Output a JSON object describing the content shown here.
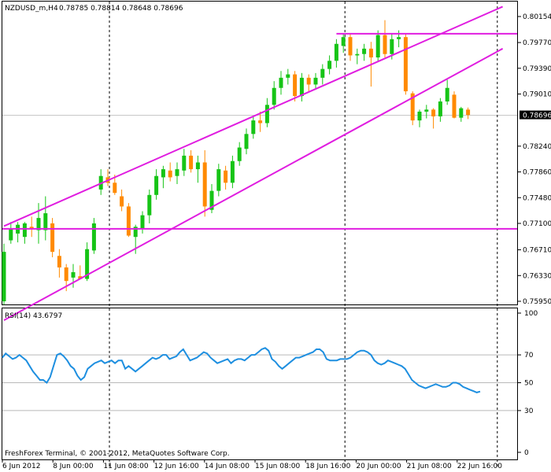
{
  "header": {
    "symbol": "NZDUSD_m,H4",
    "ohlc": "0.78785 0.78814 0.78648 0.78696"
  },
  "footer": {
    "copyright": "FreshForex Terminal, © 2001-2012, MetaQuotes Software Corp."
  },
  "colors": {
    "bull": "#16c416",
    "bear": "#ff8a00",
    "channel": "#e01de0",
    "rsi": "#1e8fe0",
    "grid": "#b9b9b9",
    "price_label_bg": "#000000"
  },
  "chart_data": [
    {
      "type": "candlestick",
      "title": "NZDUSD_m,H4",
      "ylim": [
        0.7595,
        0.80154
      ],
      "y_ticks": [
        "0.80154",
        "0.79770",
        "0.79390",
        "0.79010",
        "0.78240",
        "0.77860",
        "0.77480",
        "0.77100",
        "0.76710",
        "0.76330",
        "0.75950"
      ],
      "current_price": "0.78696",
      "x_ticks": [
        "6 Jun 2012",
        "8 Jun 00:00",
        "11 Jun 08:00",
        "12 Jun 16:00",
        "14 Jun 08:00",
        "15 Jun 08:00",
        "18 Jun 16:00",
        "20 Jun 00:00",
        "21 Jun 08:00",
        "22 Jun 16:00"
      ],
      "candles": [
        {
          "o": 0.7595,
          "h": 0.768,
          "l": 0.759,
          "c": 0.7668
        },
        {
          "o": 0.7685,
          "h": 0.7712,
          "l": 0.768,
          "c": 0.7702
        },
        {
          "o": 0.7695,
          "h": 0.7712,
          "l": 0.7682,
          "c": 0.7708
        },
        {
          "o": 0.769,
          "h": 0.7712,
          "l": 0.768,
          "c": 0.771
        },
        {
          "o": 0.7705,
          "h": 0.772,
          "l": 0.769,
          "c": 0.7702
        },
        {
          "o": 0.77,
          "h": 0.774,
          "l": 0.768,
          "c": 0.7718
        },
        {
          "o": 0.77,
          "h": 0.775,
          "l": 0.7685,
          "c": 0.7725
        },
        {
          "o": 0.771,
          "h": 0.7718,
          "l": 0.766,
          "c": 0.7668
        },
        {
          "o": 0.7662,
          "h": 0.7672,
          "l": 0.763,
          "c": 0.7645
        },
        {
          "o": 0.7645,
          "h": 0.765,
          "l": 0.761,
          "c": 0.7625
        },
        {
          "o": 0.763,
          "h": 0.765,
          "l": 0.7615,
          "c": 0.7638
        },
        {
          "o": 0.7632,
          "h": 0.7648,
          "l": 0.7628,
          "c": 0.7628
        },
        {
          "o": 0.7628,
          "h": 0.7682,
          "l": 0.7625,
          "c": 0.7672
        },
        {
          "o": 0.767,
          "h": 0.7718,
          "l": 0.7665,
          "c": 0.771
        },
        {
          "o": 0.776,
          "h": 0.779,
          "l": 0.7752,
          "c": 0.778
        },
        {
          "o": 0.7778,
          "h": 0.779,
          "l": 0.7765,
          "c": 0.777
        },
        {
          "o": 0.777,
          "h": 0.7782,
          "l": 0.7752,
          "c": 0.7755
        },
        {
          "o": 0.775,
          "h": 0.776,
          "l": 0.7728,
          "c": 0.7735
        },
        {
          "o": 0.7735,
          "h": 0.774,
          "l": 0.769,
          "c": 0.7692
        },
        {
          "o": 0.769,
          "h": 0.7708,
          "l": 0.7665,
          "c": 0.7705
        },
        {
          "o": 0.7702,
          "h": 0.7728,
          "l": 0.7695,
          "c": 0.7722
        },
        {
          "o": 0.7722,
          "h": 0.776,
          "l": 0.771,
          "c": 0.7752
        },
        {
          "o": 0.7752,
          "h": 0.779,
          "l": 0.7745,
          "c": 0.778
        },
        {
          "o": 0.7778,
          "h": 0.7795,
          "l": 0.7762,
          "c": 0.779
        },
        {
          "o": 0.7788,
          "h": 0.78,
          "l": 0.7772,
          "c": 0.7778
        },
        {
          "o": 0.778,
          "h": 0.78,
          "l": 0.7768,
          "c": 0.779
        },
        {
          "o": 0.7788,
          "h": 0.782,
          "l": 0.778,
          "c": 0.781
        },
        {
          "o": 0.781,
          "h": 0.7818,
          "l": 0.7785,
          "c": 0.779
        },
        {
          "o": 0.779,
          "h": 0.781,
          "l": 0.777,
          "c": 0.78
        },
        {
          "o": 0.78,
          "h": 0.7818,
          "l": 0.772,
          "c": 0.7735
        },
        {
          "o": 0.773,
          "h": 0.7768,
          "l": 0.7725,
          "c": 0.7758
        },
        {
          "o": 0.7758,
          "h": 0.7798,
          "l": 0.775,
          "c": 0.779
        },
        {
          "o": 0.7788,
          "h": 0.7795,
          "l": 0.776,
          "c": 0.777
        },
        {
          "o": 0.777,
          "h": 0.781,
          "l": 0.7762,
          "c": 0.7802
        },
        {
          "o": 0.7802,
          "h": 0.783,
          "l": 0.7795,
          "c": 0.7822
        },
        {
          "o": 0.782,
          "h": 0.785,
          "l": 0.7812,
          "c": 0.7842
        },
        {
          "o": 0.7842,
          "h": 0.7868,
          "l": 0.7835,
          "c": 0.7862
        },
        {
          "o": 0.7862,
          "h": 0.7875,
          "l": 0.7845,
          "c": 0.7858
        },
        {
          "o": 0.7858,
          "h": 0.7895,
          "l": 0.7852,
          "c": 0.7885
        },
        {
          "o": 0.7885,
          "h": 0.792,
          "l": 0.7878,
          "c": 0.791
        },
        {
          "o": 0.791,
          "h": 0.7935,
          "l": 0.79,
          "c": 0.7925
        },
        {
          "o": 0.7925,
          "h": 0.7938,
          "l": 0.7915,
          "c": 0.793
        },
        {
          "o": 0.793,
          "h": 0.7935,
          "l": 0.789,
          "c": 0.7898
        },
        {
          "o": 0.7898,
          "h": 0.7932,
          "l": 0.789,
          "c": 0.7925
        },
        {
          "o": 0.7925,
          "h": 0.793,
          "l": 0.7905,
          "c": 0.7915
        },
        {
          "o": 0.7915,
          "h": 0.7932,
          "l": 0.7908,
          "c": 0.7925
        },
        {
          "o": 0.7925,
          "h": 0.7945,
          "l": 0.7915,
          "c": 0.7938
        },
        {
          "o": 0.7938,
          "h": 0.7958,
          "l": 0.793,
          "c": 0.795
        },
        {
          "o": 0.795,
          "h": 0.7982,
          "l": 0.794,
          "c": 0.7975
        },
        {
          "o": 0.7972,
          "h": 0.799,
          "l": 0.7962,
          "c": 0.7985
        },
        {
          "o": 0.7985,
          "h": 0.799,
          "l": 0.795,
          "c": 0.7958
        },
        {
          "o": 0.7958,
          "h": 0.7968,
          "l": 0.7945,
          "c": 0.796
        },
        {
          "o": 0.796,
          "h": 0.7975,
          "l": 0.795,
          "c": 0.7968
        },
        {
          "o": 0.7968,
          "h": 0.7978,
          "l": 0.7912,
          "c": 0.7955
        },
        {
          "o": 0.7955,
          "h": 0.7995,
          "l": 0.795,
          "c": 0.7988
        },
        {
          "o": 0.7988,
          "h": 0.801,
          "l": 0.7955,
          "c": 0.796
        },
        {
          "o": 0.796,
          "h": 0.799,
          "l": 0.7952,
          "c": 0.7982
        },
        {
          "o": 0.7982,
          "h": 0.7995,
          "l": 0.797,
          "c": 0.7985
        },
        {
          "o": 0.7985,
          "h": 0.799,
          "l": 0.79,
          "c": 0.7905
        },
        {
          "o": 0.7902,
          "h": 0.7905,
          "l": 0.7855,
          "c": 0.7862
        },
        {
          "o": 0.7862,
          "h": 0.7878,
          "l": 0.7852,
          "c": 0.7875
        },
        {
          "o": 0.7875,
          "h": 0.7885,
          "l": 0.7865,
          "c": 0.7878
        },
        {
          "o": 0.7878,
          "h": 0.788,
          "l": 0.785,
          "c": 0.7868
        },
        {
          "o": 0.7868,
          "h": 0.7895,
          "l": 0.786,
          "c": 0.789
        },
        {
          "o": 0.789,
          "h": 0.7922,
          "l": 0.7885,
          "c": 0.791
        },
        {
          "o": 0.79,
          "h": 0.7905,
          "l": 0.7865,
          "c": 0.7866
        },
        {
          "o": 0.7866,
          "h": 0.7882,
          "l": 0.786,
          "c": 0.788
        },
        {
          "o": 0.7878,
          "h": 0.7881,
          "l": 0.7864,
          "c": 0.787
        }
      ],
      "lines": [
        {
          "kind": "channel-upper",
          "x1": 0,
          "y1": 0.7706,
          "x2": 72,
          "y2": 0.803
        },
        {
          "kind": "channel-lower",
          "x1": 0,
          "y1": 0.7567,
          "x2": 72,
          "y2": 0.7968
        },
        {
          "kind": "horizontal",
          "y": 0.7702
        },
        {
          "kind": "horizontal",
          "y": 0.799,
          "from": 48
        }
      ],
      "vertical_markers": [
        15,
        49,
        71
      ]
    },
    {
      "type": "line",
      "title": "RSI(14) 43.6797",
      "ylim": [
        0,
        100
      ],
      "y_ticks": [
        "100",
        "70",
        "50",
        "30",
        "0"
      ],
      "levels": [
        70,
        50,
        30
      ],
      "series": [
        {
          "values": [
            68,
            71,
            69,
            67,
            68,
            70,
            68,
            66,
            62,
            58,
            55,
            52,
            52,
            50,
            54,
            62,
            70,
            71,
            69,
            66,
            62,
            60,
            55,
            52,
            54,
            60,
            62,
            64,
            65,
            66,
            64,
            65,
            66,
            64,
            66,
            66,
            60,
            62,
            60,
            58,
            60,
            62,
            64,
            66,
            68,
            67,
            68,
            70,
            70,
            67,
            68,
            69,
            72,
            74,
            70,
            66,
            67,
            68,
            70,
            72,
            71,
            68,
            66,
            64,
            65,
            66,
            67,
            64,
            66,
            67,
            67,
            66,
            68,
            70,
            70,
            72,
            74,
            75,
            73,
            67,
            65,
            62,
            60,
            62,
            64,
            66,
            68,
            68,
            69,
            70,
            71,
            72,
            74,
            74,
            72,
            67,
            66,
            66,
            66,
            67,
            67,
            67,
            68,
            70,
            72,
            73,
            73,
            72,
            70,
            66,
            64,
            63,
            64,
            66,
            65,
            64,
            63,
            62,
            60,
            56,
            52,
            50,
            48,
            47,
            46,
            47,
            48,
            49,
            48,
            47,
            47,
            48,
            50,
            50,
            49,
            47,
            46,
            45,
            44,
            43,
            43.68
          ]
        }
      ]
    }
  ]
}
